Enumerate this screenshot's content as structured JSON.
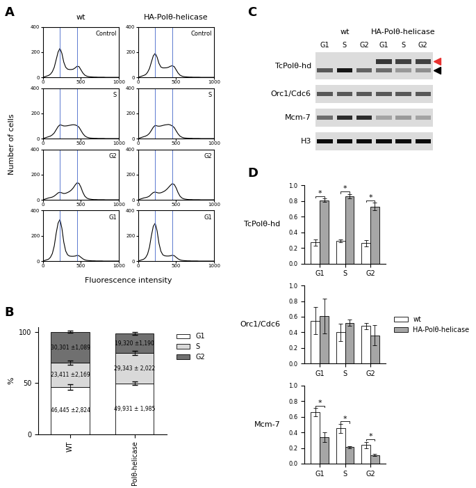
{
  "panel_labels": [
    "A",
    "B",
    "C",
    "D"
  ],
  "chart_data": [
    {
      "type": "line",
      "columns": [
        "wt",
        "HA-Polθ-helicase"
      ],
      "xlabel": "Fluorescence intensity",
      "ylabel": "Number of cells",
      "color": "#000000",
      "gate_color": "#5a78d0",
      "gates": [
        225,
        450
      ],
      "xlim": [
        0,
        1000
      ],
      "xticks": [
        0,
        500,
        1000
      ],
      "ylim": [
        0,
        400
      ],
      "yticks": [
        0,
        200,
        400
      ],
      "x": [
        0,
        25,
        50,
        75,
        100,
        125,
        150,
        175,
        200,
        225,
        250,
        275,
        300,
        325,
        350,
        375,
        400,
        425,
        450,
        475,
        500,
        525,
        550,
        575,
        600,
        625,
        650,
        675,
        700,
        725,
        750,
        775,
        800,
        825,
        850,
        875,
        900,
        925,
        950,
        975,
        1000
      ],
      "rows": [
        {
          "title": "Control",
          "values": [
            [
              0,
              5,
              10,
              15,
              25,
              45,
              80,
              140,
              200,
              230,
              190,
              120,
              80,
              65,
              62,
              62,
              65,
              75,
              88,
              85,
              60,
              35,
              18,
              10,
              6,
              4,
              3,
              2,
              2,
              1,
              1,
              1,
              1,
              0,
              0,
              0,
              0,
              0,
              0,
              0,
              0
            ],
            [
              0,
              5,
              10,
              15,
              22,
              40,
              70,
              120,
              170,
              190,
              160,
              110,
              82,
              75,
              75,
              76,
              80,
              88,
              92,
              85,
              60,
              35,
              18,
              10,
              6,
              4,
              3,
              2,
              2,
              1,
              1,
              1,
              1,
              0,
              0,
              0,
              0,
              0,
              0,
              0,
              0
            ]
          ]
        },
        {
          "title": "S",
          "values": [
            [
              0,
              5,
              10,
              15,
              20,
              30,
              45,
              70,
              95,
              110,
              105,
              100,
              100,
              102,
              105,
              108,
              110,
              108,
              102,
              90,
              65,
              40,
              22,
              12,
              7,
              4,
              3,
              2,
              2,
              1,
              1,
              1,
              1,
              0,
              0,
              0,
              0,
              0,
              0,
              0,
              0
            ],
            [
              0,
              5,
              10,
              15,
              20,
              28,
              42,
              65,
              90,
              105,
              100,
              98,
              100,
              104,
              108,
              110,
              112,
              108,
              100,
              88,
              62,
              38,
              20,
              11,
              6,
              4,
              3,
              2,
              2,
              1,
              1,
              1,
              1,
              0,
              0,
              0,
              0,
              0,
              0,
              0,
              0
            ]
          ]
        },
        {
          "title": "G2",
          "values": [
            [
              0,
              5,
              10,
              15,
              18,
              22,
              30,
              42,
              55,
              60,
              55,
              50,
              52,
              58,
              66,
              78,
              95,
              118,
              135,
              130,
              100,
              60,
              30,
              15,
              8,
              5,
              3,
              2,
              2,
              1,
              1,
              1,
              1,
              0,
              0,
              0,
              0,
              0,
              0,
              0,
              0
            ],
            [
              0,
              5,
              10,
              15,
              18,
              22,
              30,
              45,
              58,
              62,
              57,
              54,
              56,
              62,
              70,
              82,
              98,
              115,
              128,
              122,
              95,
              58,
              30,
              15,
              8,
              5,
              3,
              2,
              2,
              1,
              1,
              1,
              1,
              0,
              0,
              0,
              0,
              0,
              0,
              0,
              0
            ]
          ]
        },
        {
          "title": "G1",
          "values": [
            [
              0,
              5,
              10,
              15,
              30,
              60,
              120,
              220,
              300,
              330,
              260,
              150,
              80,
              50,
              40,
              38,
              38,
              40,
              45,
              42,
              30,
              18,
              10,
              6,
              4,
              3,
              2,
              2,
              1,
              1,
              1,
              1,
              0,
              0,
              0,
              0,
              0,
              0,
              0,
              0,
              0
            ],
            [
              0,
              5,
              10,
              15,
              28,
              55,
              110,
              200,
              275,
              300,
              240,
              140,
              78,
              50,
              42,
              40,
              40,
              42,
              46,
              43,
              30,
              18,
              10,
              6,
              4,
              3,
              2,
              2,
              1,
              1,
              1,
              1,
              0,
              0,
              0,
              0,
              0,
              0,
              0,
              0,
              0
            ]
          ]
        }
      ]
    },
    {
      "type": "bar",
      "stacked": true,
      "data_labels": true,
      "legend": "right",
      "ylabel": "%",
      "categories": [
        "WT",
        "Polθ-helicase"
      ],
      "ylim": [
        0,
        105
      ],
      "yticks": [
        0,
        50,
        100
      ],
      "series": [
        {
          "name": "G1",
          "color": "#ffffff",
          "values": [
            46.445,
            49.931
          ],
          "errors": [
            2.824,
            1.985
          ],
          "value_labels": [
            "46,445 ±2,824",
            "49,931 ± 1,985"
          ]
        },
        {
          "name": "S",
          "color": "#d9d9d9",
          "values": [
            23.411,
            29.343
          ],
          "errors": [
            2.169,
            2.022
          ],
          "value_labels": [
            "23,411 ±2,169",
            "29,343 ± 2,022"
          ]
        },
        {
          "name": "G2",
          "color": "#707070",
          "values": [
            30.301,
            19.32
          ],
          "errors": [
            1.089,
            1.19
          ],
          "value_labels": [
            "30,301 ±1,089",
            "19,320 ±1,190"
          ]
        }
      ]
    },
    {
      "type": "bar",
      "legend": "right",
      "categories": [
        "G1",
        "S",
        "G2"
      ],
      "ylim": [
        0.0,
        1.0
      ],
      "yticks": [
        0.0,
        0.2,
        0.4,
        0.6,
        0.8,
        1.0
      ],
      "series": [
        {
          "name": "wt",
          "color": "#ffffff"
        },
        {
          "name": "HA-Polθ-helicase",
          "color": "#a6a6a6"
        }
      ],
      "subcharts": [
        {
          "title": "TcPolθ-hd",
          "values": [
            [
              0.27,
              0.29,
              0.26
            ],
            [
              0.81,
              0.86,
              0.73
            ]
          ],
          "errors": [
            [
              0.04,
              0.02,
              0.04
            ],
            [
              0.02,
              0.03,
              0.05
            ]
          ],
          "significance": [
            "*",
            "*",
            "*"
          ]
        },
        {
          "title": "Orc1/Cdc6",
          "values": [
            [
              0.55,
              0.4,
              0.48
            ],
            [
              0.61,
              0.52,
              0.36
            ]
          ],
          "errors": [
            [
              0.17,
              0.11,
              0.04
            ],
            [
              0.22,
              0.04,
              0.13
            ]
          ],
          "significance": [
            null,
            null,
            null
          ]
        },
        {
          "title": "Mcm-7",
          "values": [
            [
              0.66,
              0.45,
              0.24
            ],
            [
              0.34,
              0.21,
              0.11
            ]
          ],
          "errors": [
            [
              0.05,
              0.06,
              0.04
            ],
            [
              0.06,
              0.01,
              0.01
            ]
          ],
          "significance": [
            "*",
            "*",
            "*"
          ]
        }
      ]
    }
  ],
  "blot": {
    "columns": [
      "G1",
      "S",
      "G2",
      "G1",
      "S",
      "G2"
    ],
    "groups": [
      {
        "label": "wt",
        "lanes": [
          0,
          1,
          2
        ]
      },
      {
        "label": "HA-Polθ-helicase",
        "lanes": [
          3,
          4,
          5
        ]
      }
    ],
    "rows": [
      {
        "label": "TcPolθ-hd",
        "bands": [
          {
            "intensity": [
              0.0,
              0.0,
              0.0,
              0.75,
              0.7,
              0.7
            ],
            "color": "#e8312f"
          },
          {
            "intensity": [
              0.6,
              0.9,
              0.55,
              0.5,
              0.3,
              0.35
            ],
            "color": "#000000"
          }
        ]
      },
      {
        "label": "Orc1/Cdc6",
        "bands": [
          {
            "intensity": [
              0.6,
              0.6,
              0.6,
              0.6,
              0.6,
              0.6
            ]
          }
        ]
      },
      {
        "label": "Mcm-7",
        "bands": [
          {
            "intensity": [
              0.5,
              0.8,
              0.8,
              0.25,
              0.3,
              0.25
            ]
          }
        ]
      },
      {
        "label": "H3",
        "bands": [
          {
            "intensity": [
              0.95,
              0.95,
              0.95,
              0.95,
              0.95,
              0.95
            ]
          }
        ]
      }
    ]
  }
}
